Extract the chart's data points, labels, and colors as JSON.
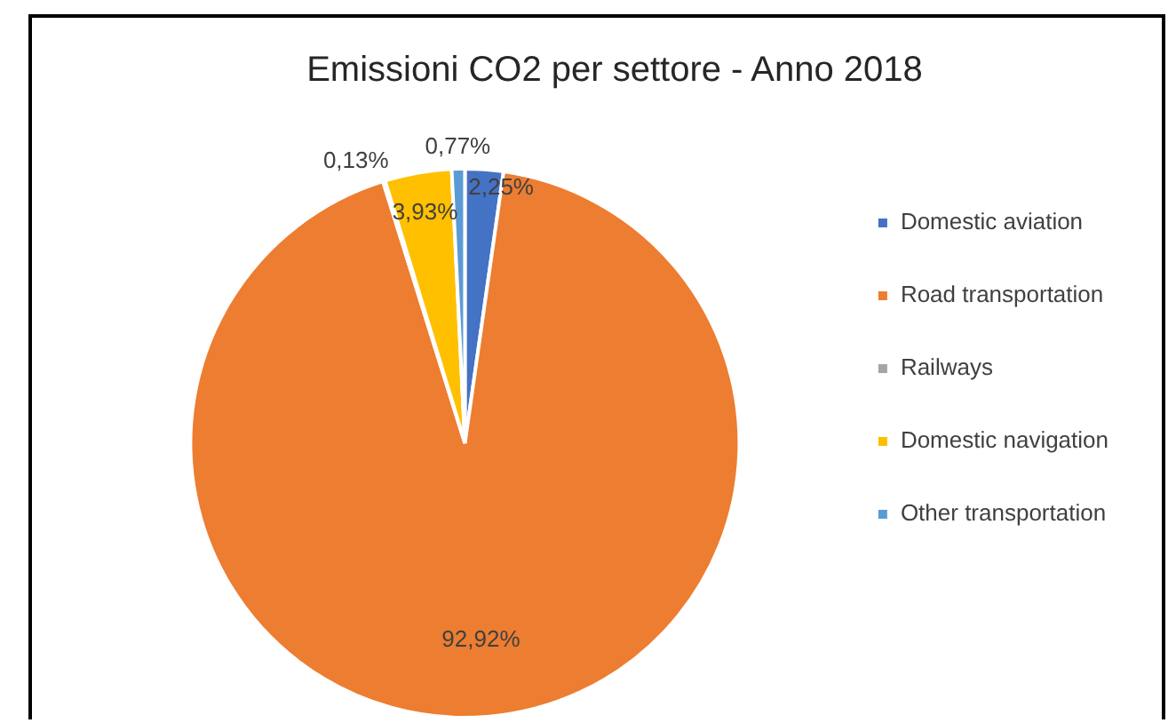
{
  "chart_data": {
    "type": "pie",
    "title": "Emissioni CO2 per settore - Anno 2018",
    "categories": [
      "Domestic aviation",
      "Road transportation",
      "Railways",
      "Domestic navigation",
      "Other transportation"
    ],
    "values": [
      2.25,
      92.92,
      0.13,
      3.93,
      0.77
    ],
    "value_labels": [
      "2,25%",
      "92,92%",
      "0,13%",
      "3,93%",
      "0,77%"
    ],
    "colors": [
      "#4472c4",
      "#ed7d31",
      "#a5a5a5",
      "#ffc000",
      "#5b9bd5"
    ],
    "legend": "right"
  }
}
